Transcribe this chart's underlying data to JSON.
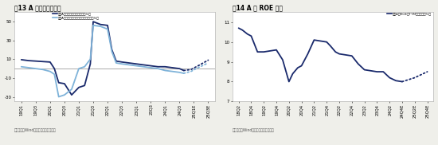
{
  "chart1": {
    "title": "图13 A 股利润增速预测",
    "legend1": "全部A股归母净利润累计同比（%）",
    "legend2": "全部A股剔除金融归母净利润累计同比（%）",
    "xticks": [
      "19Q1",
      "19Q3",
      "20Q1",
      "20Q3",
      "21Q1",
      "21Q3",
      "22Q1",
      "22Q3",
      "23Q1",
      "23Q3",
      "24Q1",
      "24Q3",
      "25Q1E",
      "25Q3E"
    ],
    "ylim": [
      -35,
      60
    ],
    "yticks": [
      -30,
      -10,
      10,
      30,
      50
    ],
    "color1": "#1a2a6c",
    "color2": "#7fb3d9",
    "footnote": "资料来源：Wind，海通证券研究所测算",
    "s1x": [
      0,
      0.5,
      1,
      1.5,
      2,
      2.3,
      2.6,
      3,
      3.5,
      4,
      4.4,
      4.8,
      5,
      5.5,
      6,
      6.3,
      6.6,
      7,
      7.5,
      8,
      8.5,
      9,
      9.5,
      10,
      10.5,
      11,
      11.3
    ],
    "s1y": [
      9.5,
      8.5,
      8.0,
      7.5,
      7.0,
      0,
      -15,
      -16,
      -28,
      -20,
      -18,
      5,
      50,
      47,
      46,
      20,
      8,
      7,
      6,
      5,
      4,
      3,
      2,
      2,
      1,
      0,
      -2
    ],
    "s2x": [
      0,
      0.5,
      1,
      1.5,
      2,
      2.3,
      2.6,
      3,
      3.5,
      4,
      4.4,
      4.8,
      5,
      5.5,
      6,
      6.3,
      6.6,
      7,
      7.5,
      8,
      8.5,
      9,
      9.5,
      10,
      10.5,
      11,
      11.3
    ],
    "s2y": [
      2,
      1,
      0,
      -1,
      -3,
      -6,
      -30,
      -28,
      -22,
      0,
      2,
      10,
      46,
      45,
      42,
      18,
      6,
      5,
      4,
      3,
      2,
      1,
      0,
      -2,
      -3,
      -4,
      -5
    ],
    "s1dx": [
      11.3,
      11.8,
      12.3,
      13
    ],
    "s1dy": [
      -2,
      -1,
      3,
      9
    ],
    "s2dx": [
      11.3,
      11.8,
      12.3,
      13
    ],
    "s2dy": [
      -5,
      -3,
      1,
      6
    ]
  },
  "chart2": {
    "title": "图14 A 股 ROE 预测",
    "legend1": "全部A股ROE（TTM，整体法，%）",
    "xticks": [
      "18Q2",
      "18Q4",
      "19Q2",
      "19Q4",
      "20Q2",
      "20Q4",
      "21Q2",
      "21Q4",
      "22Q2",
      "22Q4",
      "23Q2",
      "23Q4",
      "24Q2",
      "24Q4E",
      "25Q2E",
      "25Q4E"
    ],
    "ylim": [
      7,
      11.5
    ],
    "yticks": [
      7,
      8,
      9,
      10,
      11
    ],
    "color1": "#1a2a6c",
    "footnote": "资料来源：Wind，海通证券研究所测算",
    "s1x": [
      0,
      0.3,
      0.7,
      1,
      1.5,
      2,
      2.5,
      3,
      3.5,
      4,
      4.3,
      4.7,
      5,
      5.5,
      6,
      6.5,
      7,
      7.3,
      7.7,
      8,
      8.5,
      9,
      9.5,
      10,
      10.5,
      11,
      11.5,
      12,
      12.5,
      13
    ],
    "s1y": [
      10.7,
      10.6,
      10.4,
      10.3,
      9.5,
      9.5,
      9.55,
      9.6,
      9.1,
      8.0,
      8.4,
      8.7,
      8.8,
      9.4,
      10.1,
      10.05,
      10.0,
      9.8,
      9.5,
      9.4,
      9.35,
      9.3,
      8.9,
      8.6,
      8.55,
      8.5,
      8.5,
      8.2,
      8.05,
      8.0
    ],
    "s1dx": [
      13,
      13.5,
      14,
      14.5,
      15
    ],
    "s1dy": [
      8.0,
      8.1,
      8.2,
      8.35,
      8.5
    ]
  },
  "bg_color": "#efefea",
  "panel_color": "#ffffff",
  "title_bg": "#dcdcdc"
}
